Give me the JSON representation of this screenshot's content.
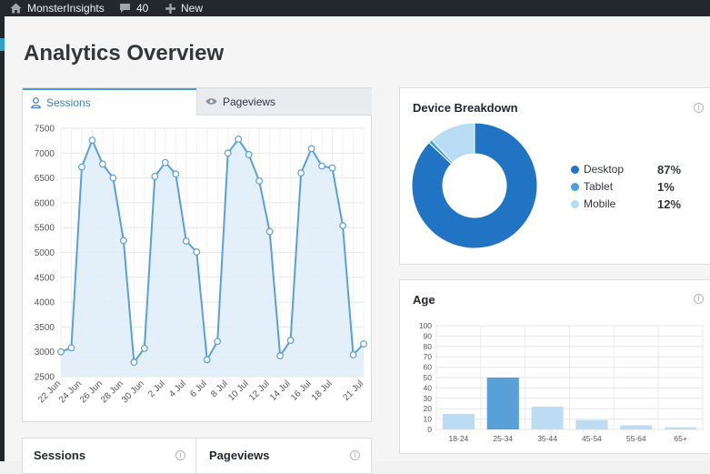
{
  "adminbar": {
    "site_name": "MonsterInsights",
    "comments_count": "40",
    "new_label": "New"
  },
  "page_title": "Analytics Overview",
  "tabs": [
    {
      "label": "Sessions",
      "icon": "user-icon",
      "active": true
    },
    {
      "label": "Pageviews",
      "icon": "eye-icon",
      "active": false
    }
  ],
  "device_breakdown": {
    "title": "Device Breakdown",
    "items": [
      {
        "label": "Desktop",
        "percent": "87%",
        "color": "#2174c3"
      },
      {
        "label": "Tablet",
        "percent": "1%",
        "color": "#4ca0de"
      },
      {
        "label": "Mobile",
        "percent": "12%",
        "color": "#b7dcf3"
      }
    ]
  },
  "age": {
    "title": "Age"
  },
  "bottom_cards": {
    "sessions_title": "Sessions",
    "pageviews_title": "Pageviews"
  },
  "colors": {
    "accent": "#4d9bd6",
    "line": "#5aa0d8",
    "area_fill": "#deedf9",
    "bar_highlight": "#5aa0d8",
    "bar_light": "#bcdcf3"
  },
  "chart_data": [
    {
      "type": "area",
      "x": [
        "22 Jun",
        "23 Jun",
        "24 Jun",
        "25 Jun",
        "26 Jun",
        "27 Jun",
        "28 Jun",
        "29 Jun",
        "30 Jun",
        "1 Jul",
        "2 Jul",
        "3 Jul",
        "4 Jul",
        "5 Jul",
        "6 Jul",
        "7 Jul",
        "8 Jul",
        "9 Jul",
        "10 Jul",
        "11 Jul",
        "12 Jul",
        "13 Jul",
        "14 Jul",
        "15 Jul",
        "16 Jul",
        "17 Jul",
        "18 Jul",
        "19 Jul",
        "20 Jul",
        "21 Jul"
      ],
      "tick_labels": [
        "22 Jun",
        "24 Jun",
        "26 Jun",
        "28 Jun",
        "30 Jun",
        "2 Jul",
        "4 Jul",
        "6 Jul",
        "8 Jul",
        "10 Jul",
        "12 Jul",
        "14 Jul",
        "16 Jul",
        "18 Jul",
        "21 Jul"
      ],
      "series": [
        {
          "values": [
            3000,
            3080,
            6720,
            7260,
            6780,
            6500,
            5240,
            2790,
            3070,
            6530,
            6810,
            6580,
            5230,
            5010,
            2840,
            3210,
            7000,
            7280,
            6970,
            6440,
            5420,
            2920,
            3230,
            6600,
            7090,
            6740,
            6700,
            5540,
            2940,
            3160
          ]
        }
      ],
      "ylim": [
        2500,
        7500
      ],
      "yticks": [
        2500,
        3000,
        3500,
        4000,
        4500,
        5000,
        5500,
        6000,
        6500,
        7000,
        7500
      ],
      "grid": true
    },
    {
      "type": "pie",
      "title": "Device Breakdown",
      "categories": [
        "Desktop",
        "Tablet",
        "Mobile"
      ],
      "values": [
        87,
        1,
        12
      ],
      "donut": true
    },
    {
      "type": "bar",
      "title": "Age",
      "categories": [
        "18-24",
        "25-34",
        "35-44",
        "45-54",
        "55-64",
        "65+"
      ],
      "values": [
        15,
        50,
        22,
        9,
        4,
        2
      ],
      "ylim": [
        0,
        100
      ],
      "yticks": [
        0,
        10,
        20,
        30,
        40,
        50,
        60,
        70,
        80,
        90,
        100
      ],
      "grid": true
    }
  ]
}
